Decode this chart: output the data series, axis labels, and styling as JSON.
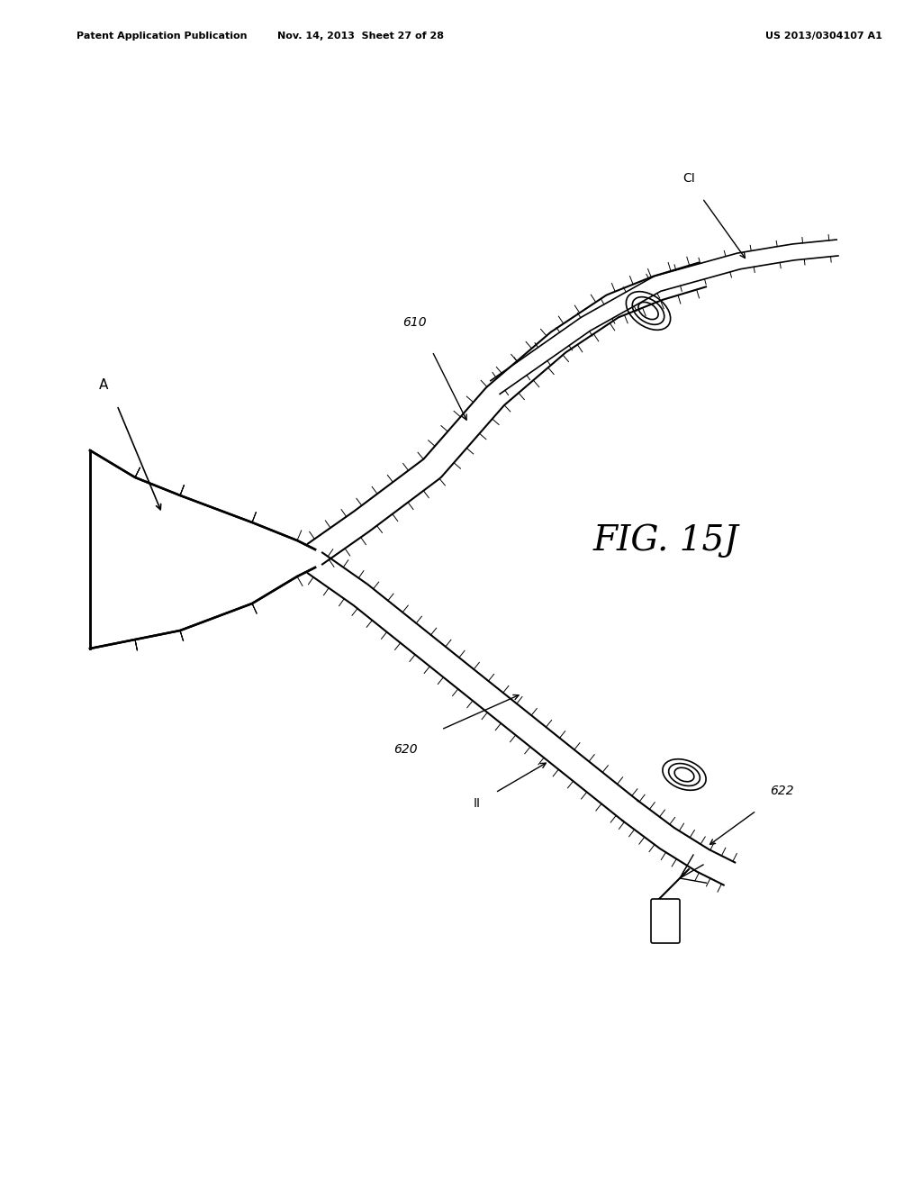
{
  "title": "FIG. 15J",
  "header_left": "Patent Application Publication",
  "header_mid": "Nov. 14, 2013  Sheet 27 of 28",
  "header_right": "US 2013/0304107 A1",
  "background_color": "#ffffff",
  "line_color": "#000000",
  "hatch_color": "#555555",
  "label_A": "A",
  "label_610": "610",
  "label_CI": "CI",
  "label_620": "620",
  "label_II": "II",
  "label_622": "622"
}
